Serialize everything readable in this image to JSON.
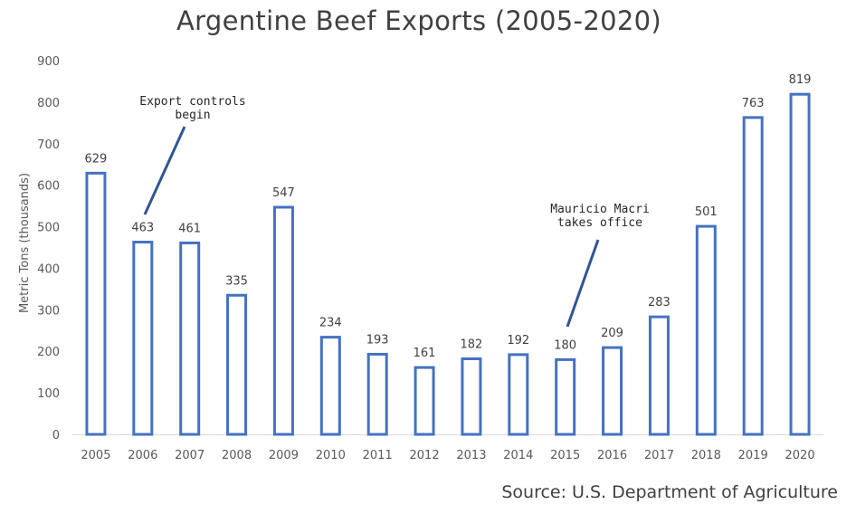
{
  "chart_data": {
    "type": "bar",
    "title": "Argentine Beef Exports (2005-2020)",
    "xlabel": "",
    "ylabel": "Metric Tons (thousands)",
    "ylim": [
      0,
      900
    ],
    "yticks": [
      0,
      100,
      200,
      300,
      400,
      500,
      600,
      700,
      800,
      900
    ],
    "grid": false,
    "legend": "none",
    "categories": [
      "2005",
      "2006",
      "2007",
      "2008",
      "2009",
      "2010",
      "2011",
      "2012",
      "2013",
      "2014",
      "2015",
      "2016",
      "2017",
      "2018",
      "2019",
      "2020"
    ],
    "values": [
      629,
      463,
      461,
      335,
      547,
      234,
      193,
      161,
      182,
      192,
      180,
      209,
      283,
      501,
      763,
      819
    ],
    "data_labels": [
      "629",
      "463",
      "461",
      "335",
      "547",
      "234",
      "193",
      "161",
      "182",
      "192",
      "180",
      "209",
      "283",
      "501",
      "763",
      "819"
    ],
    "bar_color": "#4472C4",
    "annotations": [
      {
        "lines": [
          "Export controls",
          "begin"
        ],
        "category": "2006"
      },
      {
        "lines": [
          "Mauricio Macri",
          "takes office"
        ],
        "category": "2015"
      }
    ]
  },
  "source": "Source: U.S. Department of Agriculture"
}
